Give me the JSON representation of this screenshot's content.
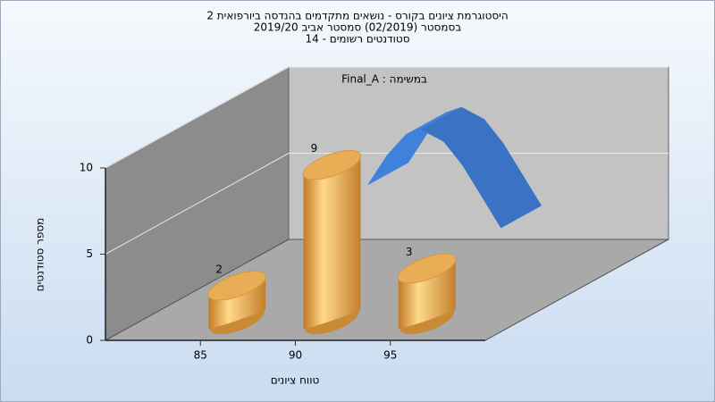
{
  "chart_data": {
    "type": "bar",
    "title": [
      "היסטוגרמת ציונים בקורס - נושאים מתקדמים בהנדסה ביורפואית 2",
      "בסמסטר  (02/2019)  סמסטר אביב 2019/20",
      "סטודנטים רשומים - 14"
    ],
    "annotation": "במשימה : Final_A",
    "xlabel": "טווח ציונים",
    "ylabel": "מספר סטודנטים",
    "x": [
      85,
      90,
      95
    ],
    "values": [
      2,
      9,
      3
    ],
    "color": "#e3a346",
    "xlim": [
      80,
      100
    ],
    "xticks": [
      85,
      90,
      95
    ],
    "ylim": [
      0,
      10
    ],
    "yticks": [
      0,
      5,
      10
    ],
    "grid": true,
    "curve": {
      "type": "ribbon",
      "color": "#3a72c4",
      "x": [
        89,
        90,
        91,
        91.8,
        93,
        94,
        95,
        96
      ],
      "values": [
        6.1,
        7.8,
        9.0,
        9.3,
        8.6,
        7.2,
        5.4,
        3.6
      ]
    }
  }
}
